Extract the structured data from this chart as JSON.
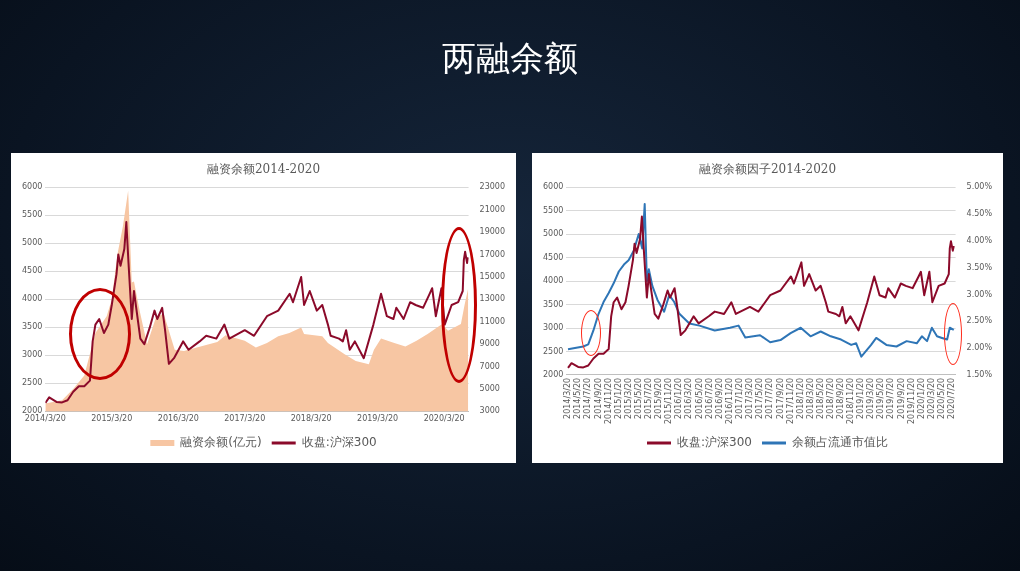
{
  "chart_data": [
    {
      "type": "other",
      "title": "两融余额"
    },
    {
      "type": "line",
      "title": "融资余额2014-2020",
      "legend": "bottom",
      "grid": "y",
      "marker": "none",
      "xlim": [
        "2014-03-20",
        "2020-08-01"
      ],
      "xticks": [
        {
          "value": "2014-03-20",
          "label": "2014/3/20"
        },
        {
          "value": "2015-03-20",
          "label": "2015/3/20"
        },
        {
          "value": "2016-03-20",
          "label": "2016/3/20"
        },
        {
          "value": "2017-03-20",
          "label": "2017/3/20"
        },
        {
          "value": "2018-03-20",
          "label": "2018/3/20"
        },
        {
          "value": "2019-03-20",
          "label": "2019/3/20"
        },
        {
          "value": "2020-03-20",
          "label": "2020/3/20"
        }
      ],
      "ylim": [
        2000,
        6000
      ],
      "yticks": [
        2000,
        2500,
        3000,
        3500,
        4000,
        4500,
        5000,
        5500,
        6000
      ],
      "y2lim": [
        3000,
        23000
      ],
      "y2ticks": [
        3000,
        5000,
        7000,
        9000,
        11000,
        13000,
        15000,
        17000,
        19000,
        21000,
        23000
      ],
      "series": [
        {
          "name": "融资余额(亿元)",
          "type": "area",
          "axis": "y2",
          "color": "#f7c6a3",
          "x": [
            "2014-03-20",
            "2014-06-20",
            "2014-08-20",
            "2014-10-20",
            "2014-12-20",
            "2015-02-20",
            "2015-03-20",
            "2015-04-20",
            "2015-05-20",
            "2015-06-18",
            "2015-07-08",
            "2015-07-20",
            "2015-08-20",
            "2015-09-30",
            "2015-11-20",
            "2015-12-31",
            "2016-02-29",
            "2016-04-20",
            "2016-07-20",
            "2016-10-20",
            "2016-12-05",
            "2017-03-20",
            "2017-05-20",
            "2017-07-20",
            "2017-09-20",
            "2017-11-20",
            "2018-01-24",
            "2018-02-09",
            "2018-05-20",
            "2018-06-20",
            "2018-09-20",
            "2018-11-20",
            "2019-01-31",
            "2019-02-28",
            "2019-04-08",
            "2019-06-20",
            "2019-08-20",
            "2019-10-20",
            "2019-12-20",
            "2020-02-20",
            "2020-03-10",
            "2020-04-10",
            "2020-06-20",
            "2020-07-10",
            "2020-07-30"
          ],
          "values": [
            3700,
            4000,
            5000,
            6200,
            10000,
            11500,
            13000,
            17000,
            19500,
            22700,
            14500,
            14600,
            12000,
            9000,
            11500,
            11700,
            8500,
            8400,
            8800,
            9200,
            9800,
            9300,
            8700,
            9100,
            9700,
            10000,
            10500,
            9900,
            9700,
            9100,
            8100,
            7500,
            7200,
            8500,
            9500,
            9100,
            8800,
            9300,
            9900,
            10600,
            10800,
            10200,
            10800,
            12500,
            14000
          ]
        },
        {
          "name": "收盘:沪深300",
          "type": "line",
          "color": "#8b0a2a",
          "x": [
            "2014-03-20",
            "2014-04-10",
            "2014-05-20",
            "2014-06-20",
            "2014-07-20",
            "2014-08-20",
            "2014-09-20",
            "2014-10-20",
            "2014-11-20",
            "2014-12-05",
            "2014-12-20",
            "2015-01-10",
            "2015-02-05",
            "2015-03-01",
            "2015-03-20",
            "2015-04-15",
            "2015-04-25",
            "2015-05-07",
            "2015-05-28",
            "2015-06-08",
            "2015-06-20",
            "2015-07-08",
            "2015-07-20",
            "2015-08-24",
            "2015-09-15",
            "2015-10-15",
            "2015-11-10",
            "2015-11-25",
            "2015-12-22",
            "2016-01-07",
            "2016-01-28",
            "2016-02-25",
            "2016-04-15",
            "2016-05-15",
            "2016-07-15",
            "2016-08-20",
            "2016-10-15",
            "2016-11-28",
            "2016-12-25",
            "2017-03-20",
            "2017-05-10",
            "2017-07-20",
            "2017-09-20",
            "2017-11-22",
            "2017-12-10",
            "2018-01-24",
            "2018-02-09",
            "2018-03-12",
            "2018-04-20",
            "2018-05-20",
            "2018-06-20",
            "2018-07-05",
            "2018-08-20",
            "2018-09-10",
            "2018-09-28",
            "2018-10-18",
            "2018-11-15",
            "2019-01-03",
            "2019-02-25",
            "2019-04-08",
            "2019-05-10",
            "2019-06-15",
            "2019-07-01",
            "2019-08-10",
            "2019-09-15",
            "2019-10-15",
            "2019-11-25",
            "2019-12-31",
            "2020-01-14",
            "2020-02-03",
            "2020-03-05",
            "2020-03-23",
            "2020-04-30",
            "2020-06-05",
            "2020-06-30",
            "2020-07-06",
            "2020-07-13",
            "2020-07-24",
            "2020-07-30"
          ],
          "values": [
            2150,
            2250,
            2170,
            2160,
            2200,
            2350,
            2450,
            2450,
            2550,
            3250,
            3550,
            3650,
            3400,
            3550,
            3900,
            4450,
            4800,
            4600,
            4900,
            5380,
            4650,
            3650,
            4150,
            3300,
            3200,
            3500,
            3800,
            3650,
            3850,
            3450,
            2850,
            2950,
            3250,
            3100,
            3250,
            3350,
            3300,
            3550,
            3300,
            3450,
            3350,
            3700,
            3800,
            4100,
            3950,
            4400,
            3900,
            4150,
            3800,
            3900,
            3550,
            3350,
            3300,
            3250,
            3450,
            3100,
            3250,
            2950,
            3550,
            4100,
            3700,
            3650,
            3850,
            3650,
            3950,
            3900,
            3850,
            4100,
            4200,
            3700,
            4200,
            3550,
            3900,
            3950,
            4150,
            4700,
            4850,
            4650,
            4750
          ]
        }
      ]
    },
    {
      "type": "line",
      "title": "融资余额因子2014-2020",
      "legend": "bottom",
      "grid": "y",
      "marker": "none",
      "xlim": [
        "2014-03-10",
        "2020-08-10"
      ],
      "xticks": [
        {
          "value": "2014-03-20",
          "label": "2014/3/20"
        },
        {
          "value": "2014-05-20",
          "label": "2014/5/20"
        },
        {
          "value": "2014-07-20",
          "label": "2014/7/20"
        },
        {
          "value": "2014-09-20",
          "label": "2014/9/20"
        },
        {
          "value": "2014-11-20",
          "label": "2014/11/20"
        },
        {
          "value": "2015-01-20",
          "label": "2015/1/20"
        },
        {
          "value": "2015-03-20",
          "label": "2015/3/20"
        },
        {
          "value": "2015-05-20",
          "label": "2015/5/20"
        },
        {
          "value": "2015-07-20",
          "label": "2015/7/20"
        },
        {
          "value": "2015-09-20",
          "label": "2015/9/20"
        },
        {
          "value": "2015-11-20",
          "label": "2015/11/20"
        },
        {
          "value": "2016-01-20",
          "label": "2016/1/20"
        },
        {
          "value": "2016-03-20",
          "label": "2016/3/20"
        },
        {
          "value": "2016-05-20",
          "label": "2016/5/20"
        },
        {
          "value": "2016-07-20",
          "label": "2016/7/20"
        },
        {
          "value": "2016-09-20",
          "label": "2016/9/20"
        },
        {
          "value": "2016-11-20",
          "label": "2016/11/20"
        },
        {
          "value": "2017-01-20",
          "label": "2017/1/20"
        },
        {
          "value": "2017-03-20",
          "label": "2017/3/20"
        },
        {
          "value": "2017-05-20",
          "label": "2017/5/20"
        },
        {
          "value": "2017-07-20",
          "label": "2017/7/20"
        },
        {
          "value": "2017-09-20",
          "label": "2017/9/20"
        },
        {
          "value": "2017-11-20",
          "label": "2017/11/20"
        },
        {
          "value": "2018-01-20",
          "label": "2018/1/20"
        },
        {
          "value": "2018-03-20",
          "label": "2018/3/20"
        },
        {
          "value": "2018-05-20",
          "label": "2018/5/20"
        },
        {
          "value": "2018-07-20",
          "label": "2018/7/20"
        },
        {
          "value": "2018-09-20",
          "label": "2018/9/20"
        },
        {
          "value": "2018-11-20",
          "label": "2018/11/20"
        },
        {
          "value": "2019-01-20",
          "label": "2019/1/20"
        },
        {
          "value": "2019-03-20",
          "label": "2019/3/20"
        },
        {
          "value": "2019-05-20",
          "label": "2019/5/20"
        },
        {
          "value": "2019-07-20",
          "label": "2019/7/20"
        },
        {
          "value": "2019-09-20",
          "label": "2019/9/20"
        },
        {
          "value": "2019-11-20",
          "label": "2019/11/20"
        },
        {
          "value": "2020-01-20",
          "label": "2020/1/20"
        },
        {
          "value": "2020-03-20",
          "label": "2020/3/20"
        },
        {
          "value": "2020-05-20",
          "label": "2020/5/20"
        },
        {
          "value": "2020-07-20",
          "label": "2020/7/20"
        }
      ],
      "ylim": [
        2000,
        6000
      ],
      "yticks": [
        2000,
        2500,
        3000,
        3500,
        4000,
        4500,
        5000,
        5500,
        6000
      ],
      "y2lim": [
        1.5,
        5
      ],
      "y2ticks": [
        {
          "value": 1.5,
          "label": "1.50%"
        },
        {
          "value": 2,
          "label": "2.00%"
        },
        {
          "value": 2.5,
          "label": "2.50%"
        },
        {
          "value": 3,
          "label": "3.00%"
        },
        {
          "value": 3.5,
          "label": "3.50%"
        },
        {
          "value": 4,
          "label": "4.00%"
        },
        {
          "value": 4.5,
          "label": "4.50%"
        },
        {
          "value": 5,
          "label": "5.00%"
        }
      ],
      "series": [
        {
          "name": "收盘:沪深300",
          "type": "line",
          "color": "#8b0a2a",
          "x": [
            "2014-03-20",
            "2014-04-10",
            "2014-05-20",
            "2014-06-20",
            "2014-07-20",
            "2014-08-20",
            "2014-09-20",
            "2014-10-20",
            "2014-11-20",
            "2014-12-05",
            "2014-12-20",
            "2015-01-10",
            "2015-02-05",
            "2015-03-01",
            "2015-03-20",
            "2015-04-15",
            "2015-04-25",
            "2015-05-07",
            "2015-05-28",
            "2015-06-08",
            "2015-06-20",
            "2015-07-08",
            "2015-07-20",
            "2015-08-24",
            "2015-09-15",
            "2015-10-15",
            "2015-11-10",
            "2015-11-25",
            "2015-12-22",
            "2016-01-07",
            "2016-01-28",
            "2016-02-25",
            "2016-04-15",
            "2016-05-15",
            "2016-07-15",
            "2016-08-20",
            "2016-10-15",
            "2016-11-28",
            "2016-12-25",
            "2017-03-20",
            "2017-05-10",
            "2017-07-20",
            "2017-09-20",
            "2017-11-22",
            "2017-12-10",
            "2018-01-24",
            "2018-02-09",
            "2018-03-12",
            "2018-04-20",
            "2018-05-20",
            "2018-06-20",
            "2018-07-05",
            "2018-08-20",
            "2018-09-10",
            "2018-09-28",
            "2018-10-18",
            "2018-11-15",
            "2019-01-03",
            "2019-02-25",
            "2019-04-08",
            "2019-05-10",
            "2019-06-15",
            "2019-07-01",
            "2019-08-10",
            "2019-09-15",
            "2019-10-15",
            "2019-11-25",
            "2019-12-31",
            "2020-01-14",
            "2020-02-03",
            "2020-03-05",
            "2020-03-23",
            "2020-04-30",
            "2020-06-05",
            "2020-06-30",
            "2020-07-06",
            "2020-07-13",
            "2020-07-24",
            "2020-07-30"
          ],
          "values": [
            2150,
            2250,
            2170,
            2160,
            2200,
            2350,
            2450,
            2450,
            2550,
            3250,
            3550,
            3650,
            3400,
            3550,
            3900,
            4450,
            4800,
            4600,
            4900,
            5380,
            4650,
            3650,
            4150,
            3300,
            3200,
            3500,
            3800,
            3650,
            3850,
            3450,
            2850,
            2950,
            3250,
            3100,
            3250,
            3350,
            3300,
            3550,
            3300,
            3450,
            3350,
            3700,
            3800,
            4100,
            3950,
            4400,
            3900,
            4150,
            3800,
            3900,
            3550,
            3350,
            3300,
            3250,
            3450,
            3100,
            3250,
            2950,
            3550,
            4100,
            3700,
            3650,
            3850,
            3650,
            3950,
            3900,
            3850,
            4100,
            4200,
            3700,
            4200,
            3550,
            3900,
            3950,
            4150,
            4700,
            4850,
            4650,
            4750
          ]
        },
        {
          "name": "余额占流通市值比",
          "type": "line",
          "axis": "y2",
          "color": "#2e75b6",
          "x": [
            "2014-03-20",
            "2014-06-20",
            "2014-07-20",
            "2014-08-20",
            "2014-09-20",
            "2014-10-20",
            "2014-11-20",
            "2014-12-20",
            "2015-01-20",
            "2015-02-20",
            "2015-03-20",
            "2015-04-20",
            "2015-05-20",
            "2015-06-10",
            "2015-06-25",
            "2015-07-08",
            "2015-07-20",
            "2015-08-10",
            "2015-09-10",
            "2015-10-20",
            "2015-11-20",
            "2015-12-20",
            "2016-01-20",
            "2016-03-20",
            "2016-05-20",
            "2016-08-20",
            "2016-11-20",
            "2017-01-10",
            "2017-02-20",
            "2017-05-20",
            "2017-07-20",
            "2017-09-20",
            "2017-11-20",
            "2018-01-20",
            "2018-03-20",
            "2018-05-20",
            "2018-07-20",
            "2018-09-20",
            "2018-11-20",
            "2018-12-20",
            "2019-01-20",
            "2019-03-20",
            "2019-04-20",
            "2019-06-20",
            "2019-08-20",
            "2019-10-20",
            "2019-12-20",
            "2020-01-20",
            "2020-02-20",
            "2020-03-20",
            "2020-04-20",
            "2020-05-20",
            "2020-06-20",
            "2020-07-06",
            "2020-07-30"
          ],
          "values": [
            1.98,
            2.03,
            2.07,
            2.33,
            2.64,
            2.86,
            3.03,
            3.21,
            3.43,
            3.56,
            3.64,
            3.82,
            4.13,
            3.86,
            4.69,
            3.25,
            3.47,
            3.16,
            2.9,
            2.68,
            2.99,
            2.86,
            2.64,
            2.46,
            2.42,
            2.33,
            2.38,
            2.42,
            2.2,
            2.24,
            2.11,
            2.15,
            2.28,
            2.38,
            2.22,
            2.31,
            2.22,
            2.16,
            2.06,
            2.09,
            1.84,
            2.06,
            2.19,
            2.06,
            2.03,
            2.13,
            2.09,
            2.22,
            2.13,
            2.38,
            2.22,
            2.19,
            2.16,
            2.38,
            2.34
          ]
        }
      ]
    }
  ]
}
